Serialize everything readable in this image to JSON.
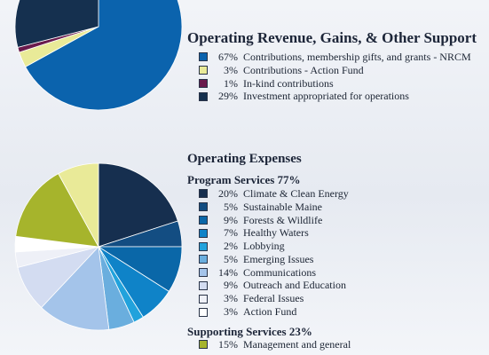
{
  "chart_data": [
    {
      "type": "pie",
      "title": "Operating Revenue, Gains, & Other Support",
      "slices": [
        {
          "label": "Contributions, membership gifts, and grants - NRCM",
          "pct_label": "67%",
          "value": 67,
          "color": "#0b63ad"
        },
        {
          "label": "Contributions - Action Fund",
          "pct_label": "3%",
          "value": 3,
          "color": "#e9ea98"
        },
        {
          "label": "In-kind contributions",
          "pct_label": "1%",
          "value": 1,
          "color": "#6a1a4c"
        },
        {
          "label": "Investment appropriated for operations",
          "pct_label": "29%",
          "value": 29,
          "color": "#15304f"
        }
      ]
    },
    {
      "type": "pie",
      "title": "Operating Expenses",
      "groups": [
        {
          "heading": "Program Services 77%",
          "slices": [
            {
              "label": "Climate & Clean Energy",
              "pct_label": "20%",
              "value": 20,
              "color": "#162f4f"
            },
            {
              "label": "Sustainable Maine",
              "pct_label": "5%",
              "value": 5,
              "color": "#134d82"
            },
            {
              "label": "Forests & Wildlife",
              "pct_label": "9%",
              "value": 9,
              "color": "#0a67a8"
            },
            {
              "label": "Healthy Waters",
              "pct_label": "7%",
              "value": 7,
              "color": "#0f83c8"
            },
            {
              "label": "Lobbying",
              "pct_label": "2%",
              "value": 2,
              "color": "#21a2dc"
            },
            {
              "label": "Emerging Issues",
              "pct_label": "5%",
              "value": 5,
              "color": "#6aaede"
            },
            {
              "label": "Communications",
              "pct_label": "14%",
              "value": 14,
              "color": "#a4c4ea"
            },
            {
              "label": "Outreach and Education",
              "pct_label": "9%",
              "value": 9,
              "color": "#d3dcf1"
            },
            {
              "label": "Federal Issues",
              "pct_label": "3%",
              "value": 3,
              "color": "#eef0f7"
            },
            {
              "label": "Action Fund",
              "pct_label": "3%",
              "value": 3,
              "color": "#ffffff"
            }
          ]
        },
        {
          "heading": "Supporting Services 23%",
          "slices": [
            {
              "label": "Management and general",
              "pct_label": "15%",
              "value": 15,
              "color": "#a6b42c"
            },
            {
              "label": "",
              "pct_label": "",
              "value": 8,
              "color": "#e9ea98"
            }
          ]
        }
      ]
    }
  ]
}
